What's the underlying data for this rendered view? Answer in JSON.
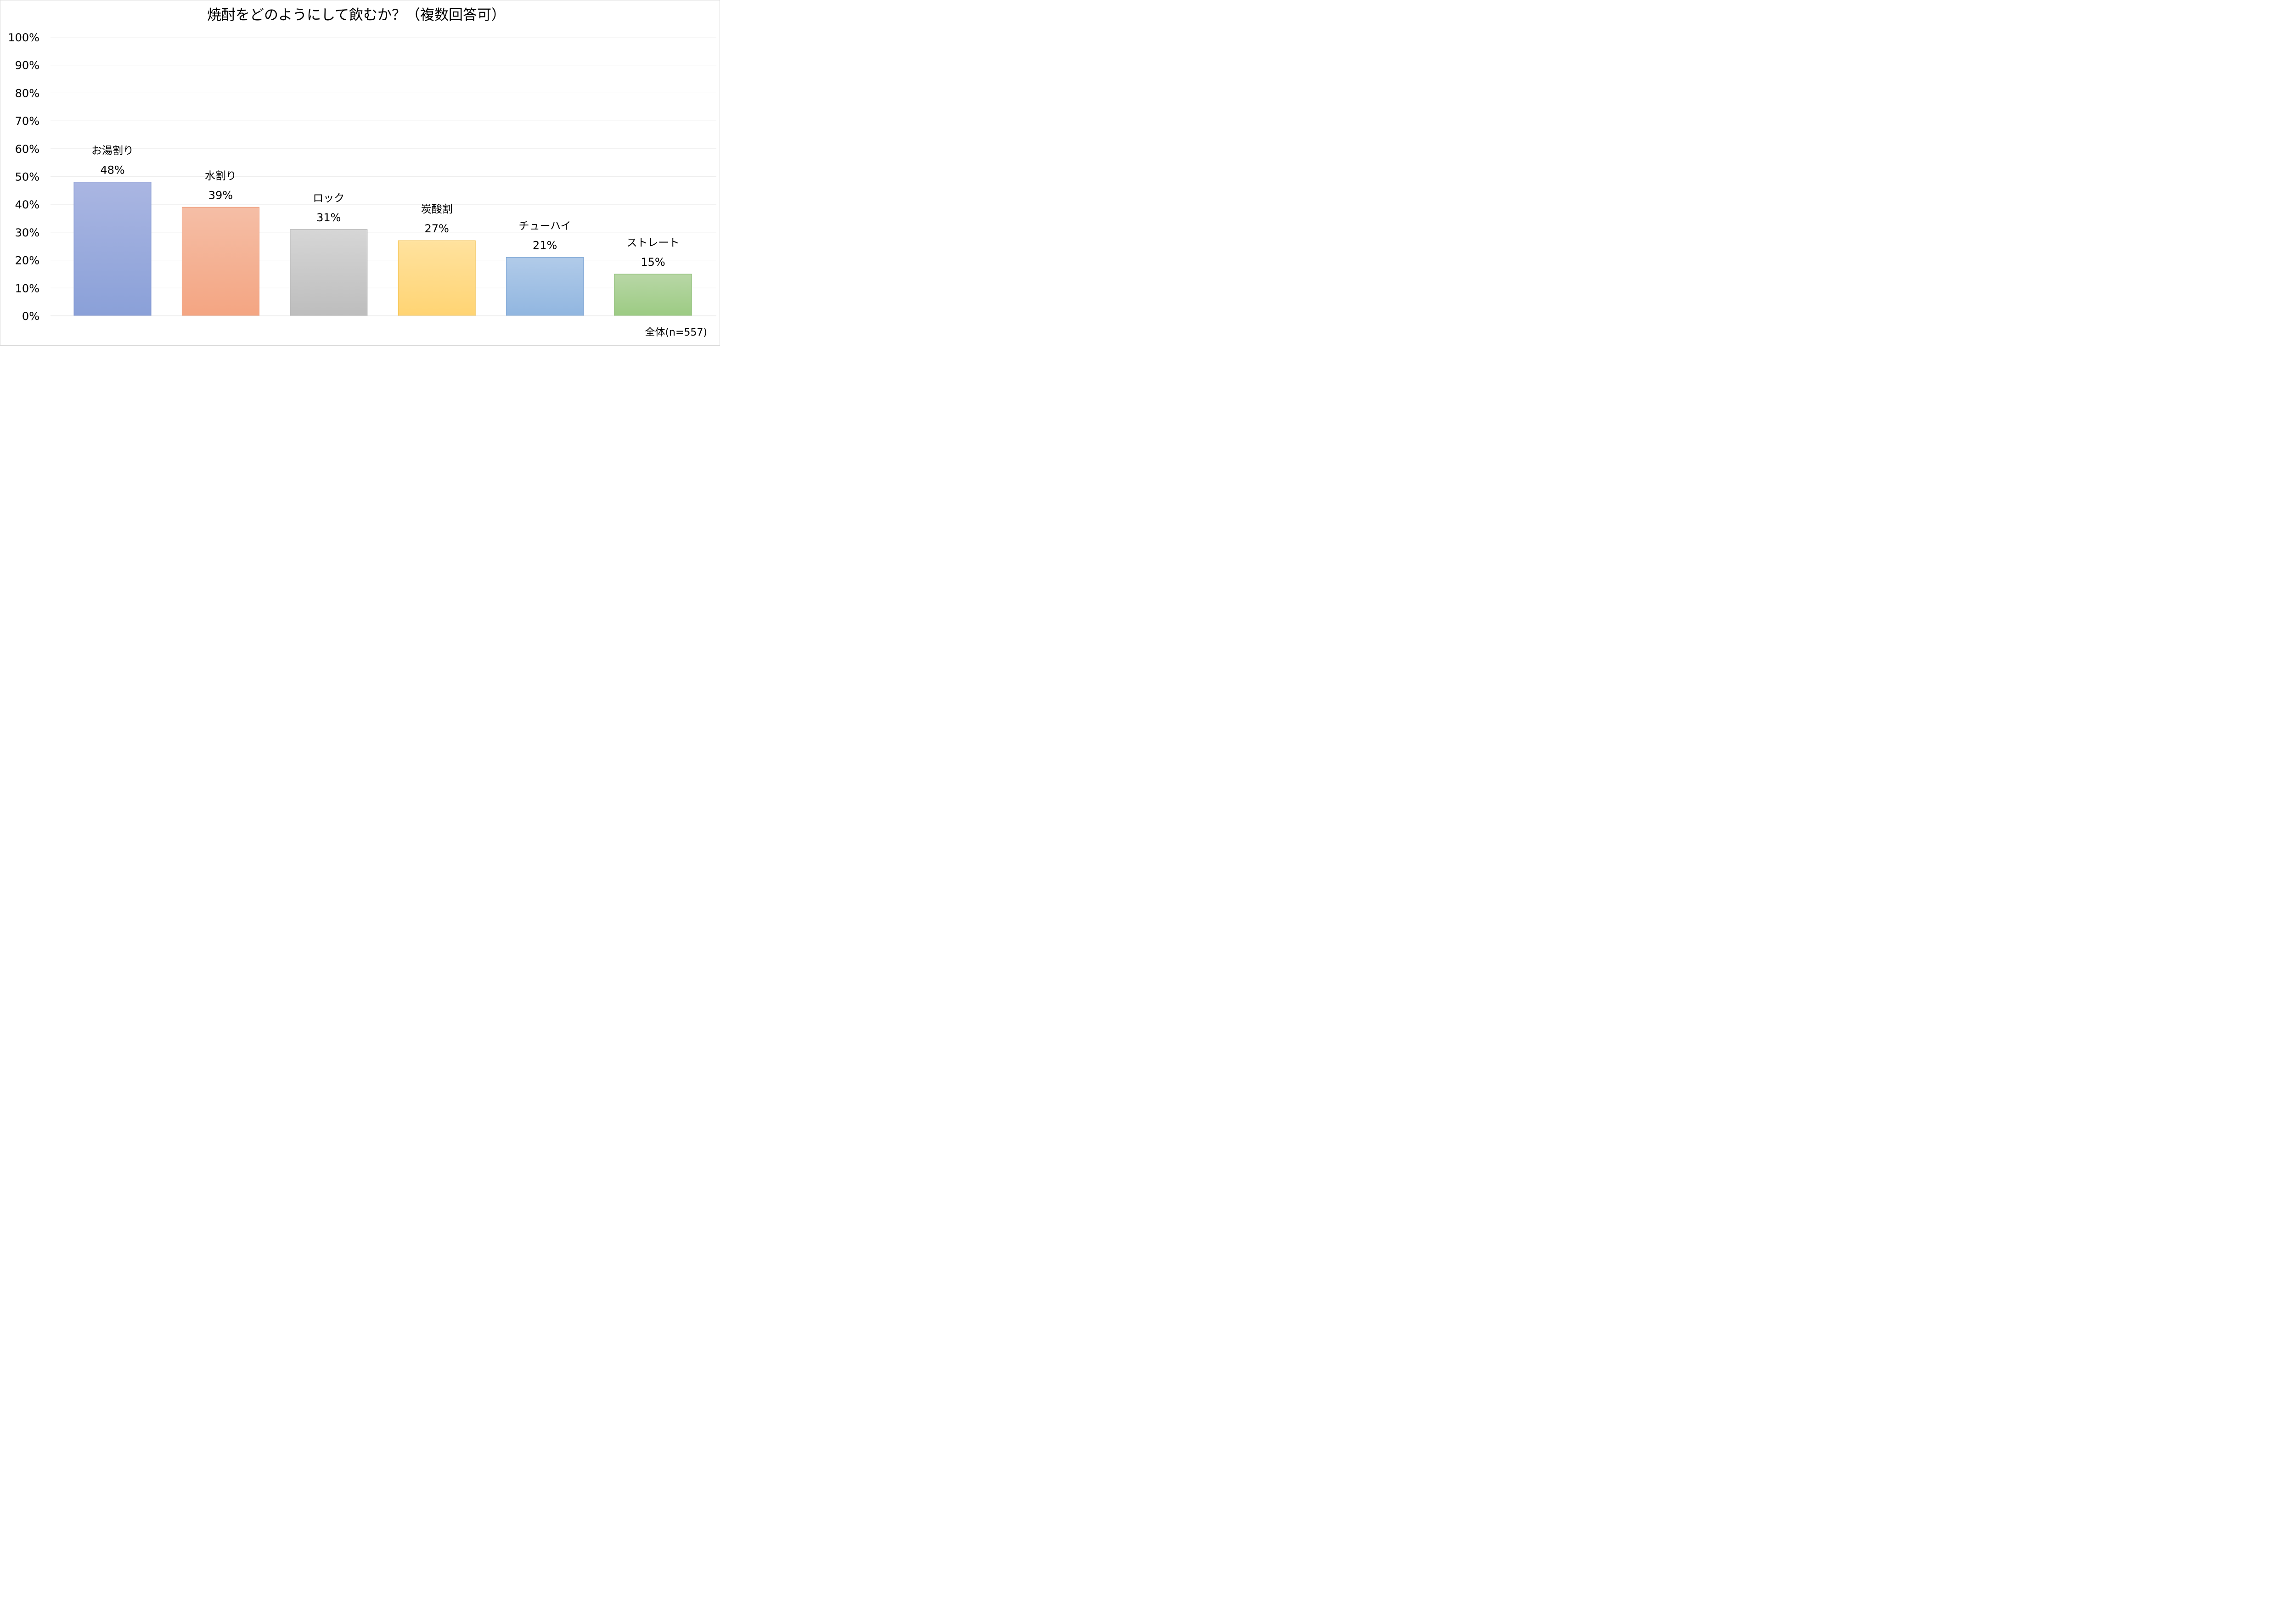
{
  "chart_data": {
    "type": "bar",
    "title": "焼酎をどのようにして飲むか？（複数回答可）",
    "categories": [
      "お湯割り",
      "水割り",
      "ロック",
      "炭酸割",
      "チューハイ",
      "ストレート"
    ],
    "values": [
      48,
      39,
      31,
      27,
      21,
      15
    ],
    "value_labels": [
      "48%",
      "39%",
      "31%",
      "27%",
      "21%",
      "15%"
    ],
    "colors": [
      {
        "top": "#aab6e2",
        "bottom": "#8aa0d8",
        "stroke": "#6f87c9"
      },
      {
        "top": "#f5bea6",
        "bottom": "#f4a582",
        "stroke": "#ec8e6a"
      },
      {
        "top": "#d6d6d6",
        "bottom": "#bdbdbd",
        "stroke": "#a6a6a6"
      },
      {
        "top": "#ffe29e",
        "bottom": "#ffd473",
        "stroke": "#f2bf4a"
      },
      {
        "top": "#b1cbe9",
        "bottom": "#91b6e0",
        "stroke": "#7aa3d4"
      },
      {
        "top": "#b8d7a6",
        "bottom": "#9ccb83",
        "stroke": "#7fb565"
      }
    ],
    "ylim": [
      0,
      100
    ],
    "ytick_values": [
      0,
      10,
      20,
      30,
      40,
      50,
      60,
      70,
      80,
      90,
      100
    ],
    "ytick_labels": [
      "0%",
      "10%",
      "20%",
      "30%",
      "40%",
      "50%",
      "60%",
      "70%",
      "80%",
      "90%",
      "100%"
    ],
    "xlabel": "",
    "ylabel": "",
    "grid": true,
    "legend": "none",
    "note": "全体(n=557)"
  }
}
